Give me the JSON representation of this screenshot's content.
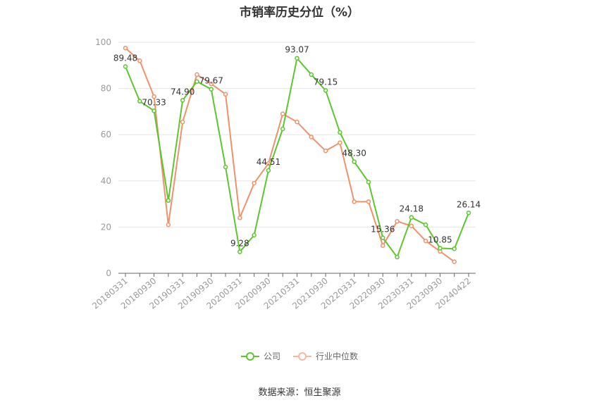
{
  "title": "市销率历史分位（%）",
  "source_text": "数据来源：恒生聚源",
  "colors": {
    "company": "#5cc62e",
    "industry": "#f0916b",
    "grid": "#e6e6e6",
    "axis": "#666666",
    "tick_text": "#999999"
  },
  "chart_data": {
    "type": "line",
    "title": "市销率历史分位（%）",
    "ylim": [
      0,
      100
    ],
    "yticks": [
      0,
      20,
      40,
      60,
      80,
      100
    ],
    "grid": true,
    "legend_position": "bottom",
    "x": [
      "20180331",
      "20180630",
      "20180930",
      "20181231",
      "20190331",
      "20190630",
      "20190930",
      "20191231",
      "20200331",
      "20200630",
      "20200930",
      "20201231",
      "20210331",
      "20210630",
      "20210930",
      "20211231",
      "20220331",
      "20220630",
      "20220930",
      "20221231",
      "20230331",
      "20230630",
      "20230930",
      "20231231",
      "20240422"
    ],
    "x_tick_labels": [
      "20180331",
      "20180930",
      "20190331",
      "20190930",
      "20200331",
      "20200930",
      "20210331",
      "20210930",
      "20220331",
      "20220930",
      "20230331",
      "20230930",
      "20240422"
    ],
    "series": [
      {
        "name": "公司",
        "values": [
          89.48,
          74.5,
          70.33,
          31.5,
          74.9,
          83.0,
          79.67,
          46.0,
          9.28,
          16.5,
          44.51,
          62.5,
          93.07,
          86.0,
          79.15,
          61.0,
          48.3,
          39.5,
          15.36,
          7.0,
          24.18,
          21.0,
          10.85,
          10.6,
          26.14
        ],
        "labels": {
          "0": "89.48",
          "2": "70.33",
          "4": "74.90",
          "6": "79.67",
          "8": "9.28",
          "10": "44.51",
          "12": "93.07",
          "14": "79.15",
          "16": "48.30",
          "18": "15.36",
          "20": "24.18",
          "22": "10.85",
          "24": "26.14"
        }
      },
      {
        "name": "行业中位数",
        "values": [
          97.5,
          92.0,
          76.5,
          21.0,
          65.5,
          86.0,
          82.0,
          77.5,
          24.0,
          39.0,
          47.5,
          69.0,
          65.5,
          59.0,
          53.0,
          56.5,
          31.0,
          31.0,
          12.0,
          22.5,
          20.5,
          14.0,
          9.5,
          5.0,
          null
        ]
      }
    ]
  }
}
